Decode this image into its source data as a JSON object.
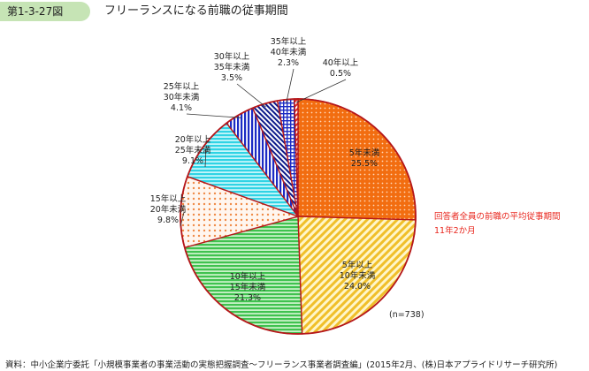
{
  "figure": {
    "number": "第1-3-27図",
    "title": "フリーランスになる前職の従事期間"
  },
  "chart_data": {
    "type": "pie",
    "title": "フリーランスになる前職の従事期間",
    "slices": [
      {
        "label": [
          "5年未満"
        ],
        "value": 25.5,
        "value_text": "25.5%",
        "color": "#f26d10",
        "pattern": "dots-orange"
      },
      {
        "label": [
          "5年以上",
          "10年未満"
        ],
        "value": 24.0,
        "value_text": "24.0%",
        "color": "#f3c533",
        "pattern": "diag-yellow"
      },
      {
        "label": [
          "10年以上",
          "15年未満"
        ],
        "value": 21.3,
        "value_text": "21.3%",
        "color": "#4ccc5a",
        "pattern": "horiz-green"
      },
      {
        "label": [
          "15年以上",
          "20年未満"
        ],
        "value": 9.8,
        "value_text": "9.8%",
        "color": "#f4a46a",
        "pattern": "dots-peach"
      },
      {
        "label": [
          "20年以上",
          "25年未満"
        ],
        "value": 9.1,
        "value_text": "9.1%",
        "color": "#35d9e8",
        "pattern": "horiz-cyan"
      },
      {
        "label": [
          "25年以上",
          "30年未満"
        ],
        "value": 4.1,
        "value_text": "4.1%",
        "color": "#1b2bc4",
        "pattern": "vert-blue"
      },
      {
        "label": [
          "30年以上",
          "35年未満"
        ],
        "value": 3.5,
        "value_text": "3.5%",
        "color": "#0d1a8a",
        "pattern": "diag-navy"
      },
      {
        "label": [
          "35年以上",
          "40年未満"
        ],
        "value": 2.3,
        "value_text": "2.3%",
        "color": "#1b2bc4",
        "pattern": "grid-blue"
      },
      {
        "label": [
          "40年以上"
        ],
        "value": 0.5,
        "value_text": "0.5%",
        "color": "#e8261d",
        "pattern": "diag-red"
      }
    ],
    "annotation": [
      "回答者全員の前職の平均従事期間",
      "11年2か月"
    ],
    "sample_size": "(n=738)"
  },
  "source": "資料：中小企業庁委託「小規模事業者の事業活動の実態把握調査〜フリーランス事業者調査編」(2015年2月、(株)日本アプライドリサーチ研究所)"
}
